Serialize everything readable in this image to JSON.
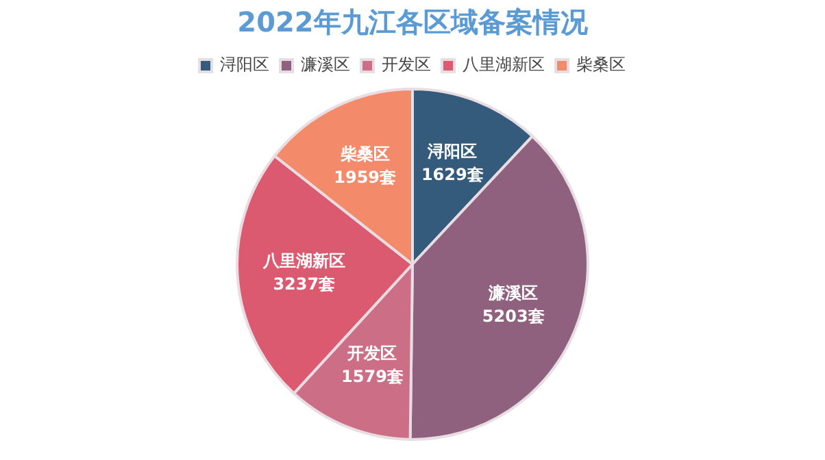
{
  "chart_data": {
    "type": "pie",
    "title": "2022年九江各区域备案情况",
    "categories": [
      "浔阳区",
      "濂溪区",
      "开发区",
      "八里湖新区",
      "柴桑区"
    ],
    "values": [
      1629,
      5203,
      1579,
      3237,
      1959
    ],
    "colors": [
      "#345a7c",
      "#8f617e",
      "#cc6f86",
      "#dc5a70",
      "#f38b6b"
    ],
    "value_labels": [
      "1629套",
      "5203套",
      "1579套",
      "3237套",
      "1959套"
    ],
    "legend": "top"
  }
}
